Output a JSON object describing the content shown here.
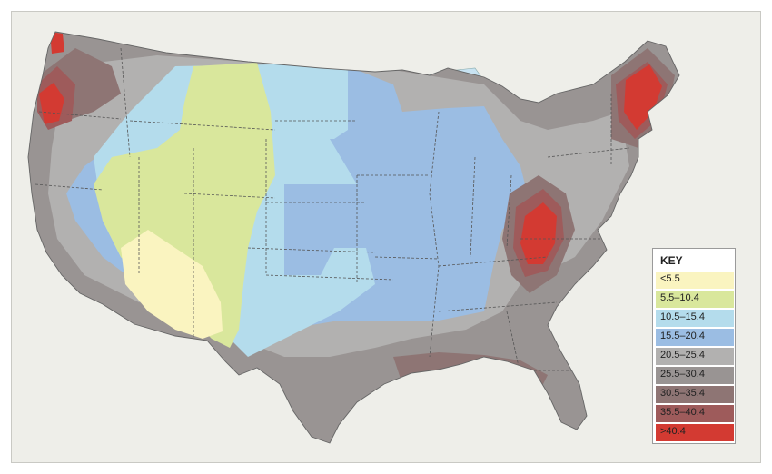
{
  "key": {
    "title": "KEY",
    "items": [
      {
        "label": "<5.5",
        "color": "#faf4c0"
      },
      {
        "label": "5.5–10.4",
        "color": "#d9e79c"
      },
      {
        "label": "10.5–15.4",
        "color": "#b4dcec"
      },
      {
        "label": "15.5–20.4",
        "color": "#9bbde3"
      },
      {
        "label": "20.5–25.4",
        "color": "#b2b1b0"
      },
      {
        "label": "25.5–30.4",
        "color": "#999493"
      },
      {
        "label": "30.5–35.4",
        "color": "#8e7574"
      },
      {
        "label": "35.5–40.4",
        "color": "#9e5b5b"
      },
      {
        "label": ">40.4",
        "color": "#d33a32"
      }
    ]
  },
  "colors": {
    "background": "#eeeee9",
    "water": "#c8e3f2",
    "borders": "#555555"
  }
}
